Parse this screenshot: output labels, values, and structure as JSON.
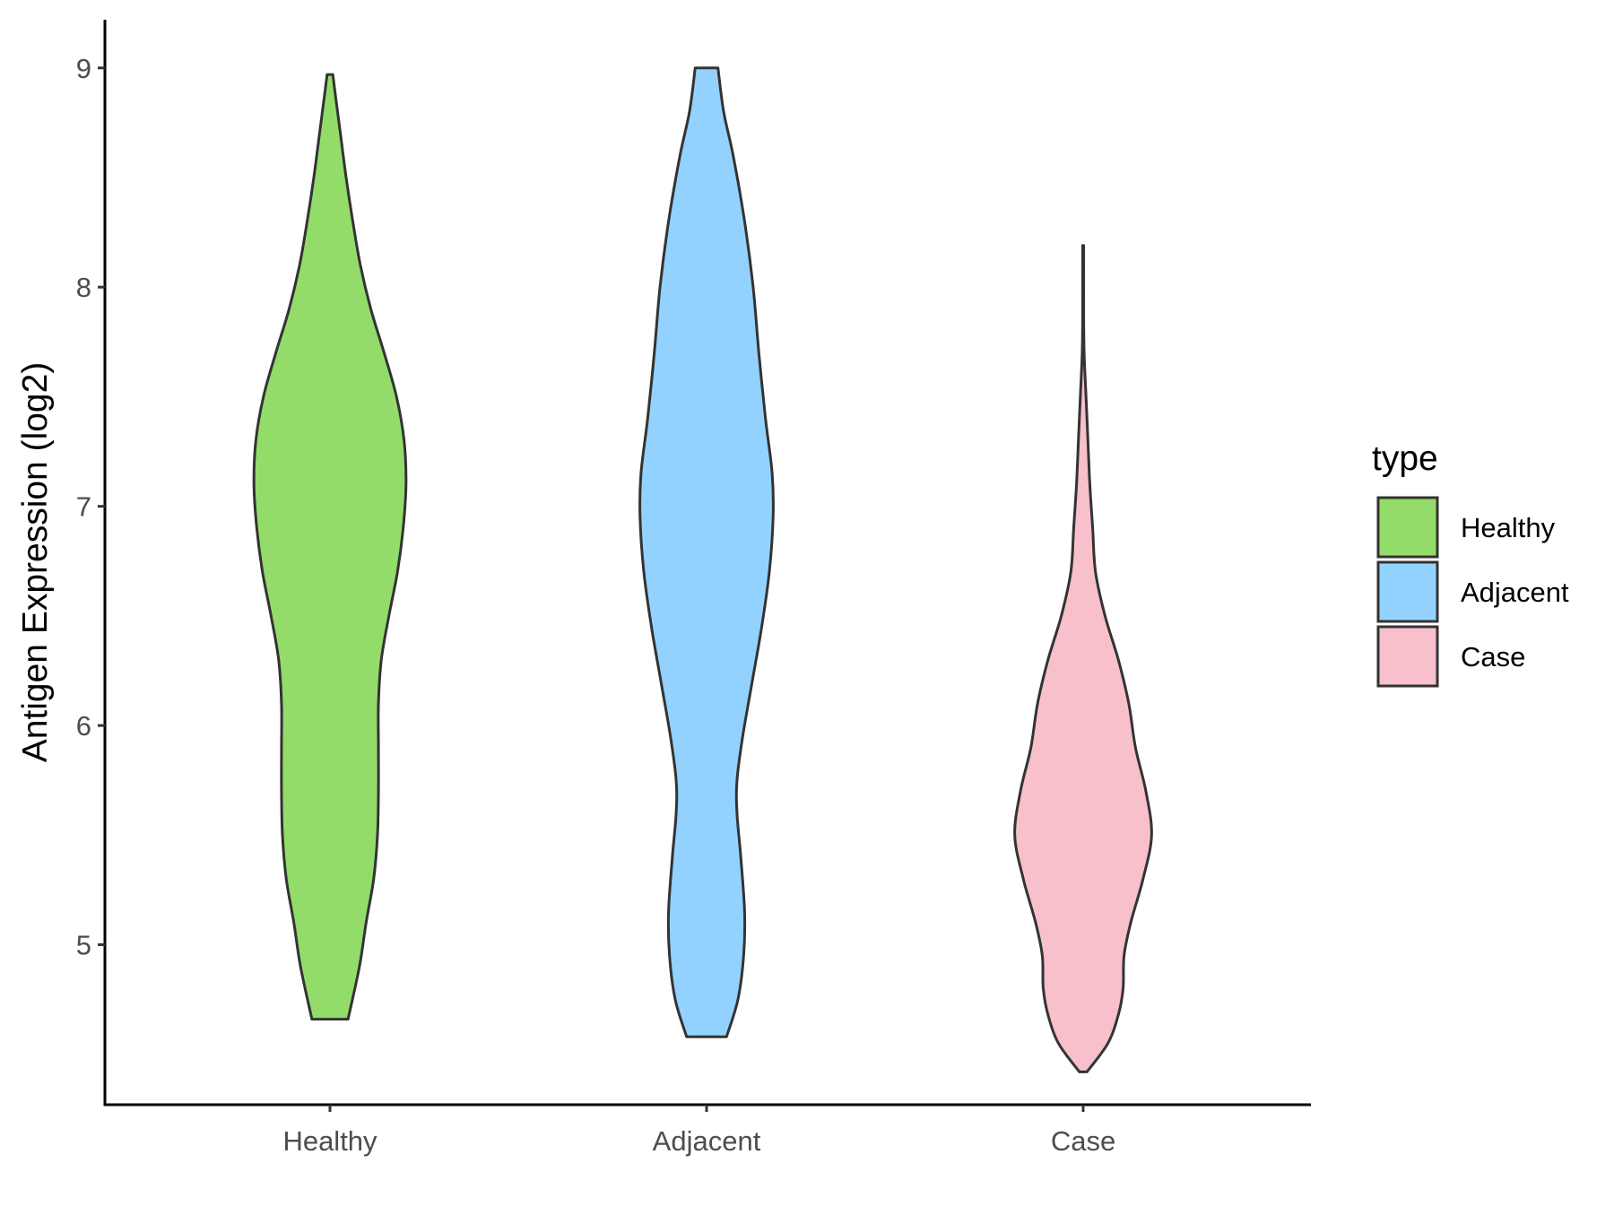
{
  "chart_data": {
    "type": "violin",
    "ylabel": "Antigen Expression (log2)",
    "xlabel": "",
    "ylim": [
      4.27,
      9.22
    ],
    "yticks": [
      5,
      6,
      7,
      8,
      9
    ],
    "categories": [
      "Healthy",
      "Adjacent",
      "Case"
    ],
    "legend": {
      "title": "type",
      "position": "right",
      "entries": [
        "Healthy",
        "Adjacent",
        "Case"
      ]
    },
    "colors": {
      "Healthy": "#93dc6a",
      "Adjacent": "#93d2ff",
      "Case": "#f7c0cb",
      "outline": "#333333"
    },
    "grid": false,
    "series": [
      {
        "category": "Healthy",
        "min": 4.66,
        "max": 8.97,
        "density": [
          [
            4.66,
            0.19
          ],
          [
            4.9,
            0.31
          ],
          [
            5.1,
            0.38
          ],
          [
            5.3,
            0.46
          ],
          [
            5.5,
            0.5
          ],
          [
            5.7,
            0.51
          ],
          [
            5.9,
            0.51
          ],
          [
            6.1,
            0.51
          ],
          [
            6.3,
            0.54
          ],
          [
            6.5,
            0.62
          ],
          [
            6.7,
            0.71
          ],
          [
            6.9,
            0.77
          ],
          [
            7.1,
            0.8
          ],
          [
            7.3,
            0.78
          ],
          [
            7.5,
            0.7
          ],
          [
            7.7,
            0.57
          ],
          [
            7.9,
            0.43
          ],
          [
            8.1,
            0.32
          ],
          [
            8.3,
            0.24
          ],
          [
            8.5,
            0.17
          ],
          [
            8.7,
            0.11
          ],
          [
            8.9,
            0.05
          ],
          [
            8.97,
            0.03
          ]
        ]
      },
      {
        "category": "Adjacent",
        "min": 4.58,
        "max": 9.0,
        "density": [
          [
            4.58,
            0.21
          ],
          [
            4.75,
            0.33
          ],
          [
            4.95,
            0.39
          ],
          [
            5.15,
            0.4
          ],
          [
            5.4,
            0.36
          ],
          [
            5.6,
            0.32
          ],
          [
            5.75,
            0.32
          ],
          [
            5.95,
            0.38
          ],
          [
            6.2,
            0.48
          ],
          [
            6.45,
            0.58
          ],
          [
            6.7,
            0.66
          ],
          [
            6.95,
            0.7
          ],
          [
            7.15,
            0.69
          ],
          [
            7.4,
            0.62
          ],
          [
            7.7,
            0.55
          ],
          [
            8.0,
            0.49
          ],
          [
            8.3,
            0.4
          ],
          [
            8.6,
            0.28
          ],
          [
            8.8,
            0.18
          ],
          [
            9.0,
            0.12
          ]
        ]
      },
      {
        "category": "Case",
        "min": 4.42,
        "max": 8.19,
        "density": [
          [
            4.42,
            0.04
          ],
          [
            4.55,
            0.26
          ],
          [
            4.68,
            0.37
          ],
          [
            4.8,
            0.42
          ],
          [
            4.95,
            0.43
          ],
          [
            5.1,
            0.5
          ],
          [
            5.3,
            0.63
          ],
          [
            5.5,
            0.72
          ],
          [
            5.7,
            0.66
          ],
          [
            5.9,
            0.55
          ],
          [
            6.1,
            0.48
          ],
          [
            6.3,
            0.37
          ],
          [
            6.5,
            0.23
          ],
          [
            6.7,
            0.13
          ],
          [
            6.9,
            0.1
          ],
          [
            7.1,
            0.07
          ],
          [
            7.3,
            0.05
          ],
          [
            7.5,
            0.03
          ],
          [
            7.7,
            0.01
          ],
          [
            7.9,
            0.005
          ],
          [
            8.19,
            0.005
          ]
        ]
      }
    ]
  }
}
